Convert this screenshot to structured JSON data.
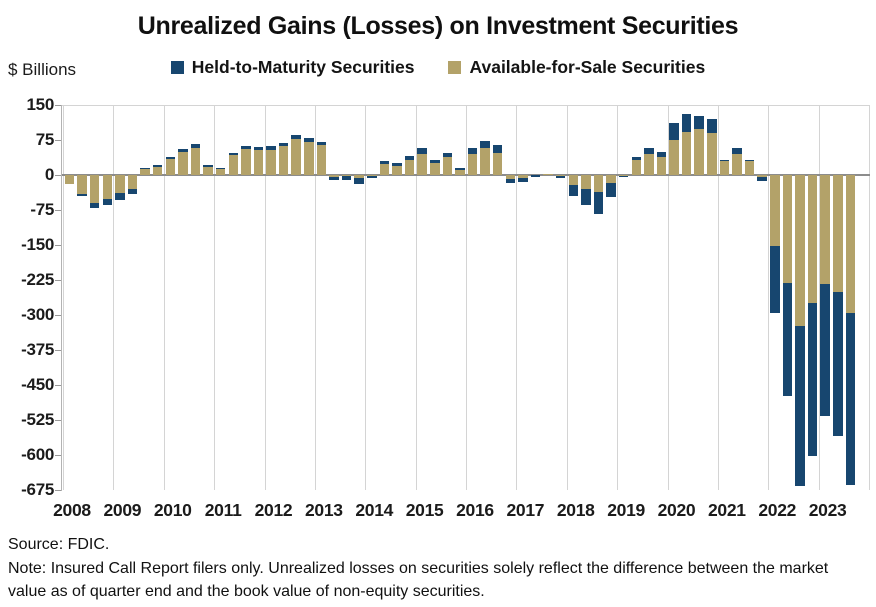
{
  "title": "Unrealized Gains (Losses) on Investment Securities",
  "y_axis_unit": "$ Billions",
  "footer": {
    "source": "Source: FDIC.",
    "note": "Note: Insured Call Report filers only. Unrealized losses on securities solely reflect the difference between the market value as of quarter end and the book value of non-equity securities."
  },
  "colors": {
    "htm": "#17466F",
    "afs": "#B3A269",
    "gridline": "#d4d4d4",
    "zero_line": "#8c8c8c"
  },
  "chart_data": {
    "type": "bar",
    "stacked": true,
    "title": "Unrealized Gains (Losses) on Investment Securities",
    "ylabel": "$ Billions",
    "ylim": [
      -675,
      150
    ],
    "yticks": [
      150,
      75,
      0,
      -75,
      -150,
      -225,
      -300,
      -375,
      -450,
      -525,
      -600,
      -675
    ],
    "x_frequency": "quarterly",
    "x_start": "2008Q1",
    "x_end": "2023Q3",
    "year_tick_labels": [
      "2008",
      "2009",
      "2010",
      "2011",
      "2012",
      "2013",
      "2014",
      "2015",
      "2016",
      "2017",
      "2018",
      "2019",
      "2020",
      "2021",
      "2022",
      "2023"
    ],
    "grid": "vertical-year-lines",
    "legend_position": "top-center",
    "series": [
      {
        "name": "Held-to-Maturity Securities",
        "color": "#17466F",
        "values": [
          -1,
          -3,
          -9,
          -12,
          -15,
          -12,
          2,
          3,
          5,
          6,
          8,
          3,
          2,
          4,
          6,
          6,
          8,
          6,
          8,
          8,
          7,
          -6,
          -7,
          -12,
          -5,
          6,
          6,
          9,
          13,
          7,
          9,
          5,
          12,
          16,
          16,
          -9,
          -9,
          -3,
          0,
          -4,
          -24,
          -33,
          -48,
          -30,
          -3,
          7,
          12,
          10,
          37,
          38,
          28,
          32,
          3,
          12,
          2,
          -9,
          -143,
          -242,
          -342,
          -327,
          -282,
          -309,
          -369
        ]
      },
      {
        "name": "Available-for-Sale Securities",
        "color": "#B3A269",
        "values": [
          -19,
          -41,
          -61,
          -52,
          -39,
          -29,
          12,
          18,
          34,
          50,
          58,
          18,
          14,
          43,
          56,
          54,
          54,
          62,
          77,
          71,
          64,
          -4,
          -3,
          -7,
          -2,
          24,
          19,
          32,
          45,
          26,
          39,
          11,
          45,
          57,
          48,
          -9,
          -7,
          -1,
          3,
          -3,
          -21,
          -31,
          -36,
          -18,
          -2,
          32,
          45,
          39,
          75,
          93,
          98,
          89,
          30,
          46,
          31,
          -4,
          -152,
          -231,
          -324,
          -275,
          -234,
          -250,
          -295
        ]
      }
    ]
  }
}
